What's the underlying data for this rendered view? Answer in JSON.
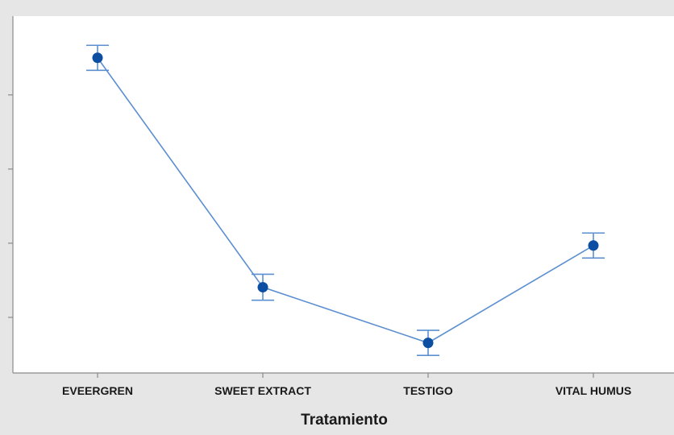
{
  "chart_data": {
    "type": "line",
    "xlabel": "Tratamiento",
    "ylabel": "",
    "categories": [
      "EVEERGREN",
      "SWEET EXTRACT",
      "TESTIGO",
      "VITAL HUMUS"
    ],
    "series": [
      {
        "values": [
          0.81,
          0.315,
          0.195,
          0.405
        ],
        "error_low": [
          0.783,
          0.287,
          0.168,
          0.378
        ],
        "error_high": [
          0.837,
          0.343,
          0.222,
          0.432
        ]
      }
    ],
    "ylim": [
      0.13,
      0.9
    ],
    "y_tick_values": [
      0.25,
      0.41,
      0.57,
      0.73
    ],
    "y_tick_labels_visible": false,
    "grid": false,
    "colors": {
      "series": "#5b8fd0",
      "marker": "#0b4ea2",
      "background": "#e6e6e6",
      "plot_area": "#ffffff",
      "axis": "#8a8a8a"
    }
  }
}
